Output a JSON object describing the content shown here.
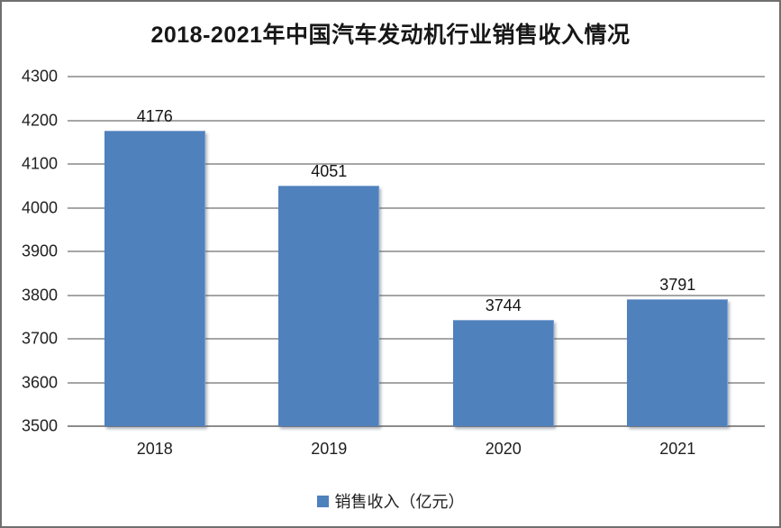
{
  "frame": {
    "background": "#ffffff",
    "border_color": "#6f6f6f"
  },
  "chart_data": {
    "type": "bar",
    "title": "2018-2021年中国汽车发动机行业销售收入情况",
    "categories": [
      "2018",
      "2019",
      "2020",
      "2021"
    ],
    "series": [
      {
        "name": "销售收入（亿元）",
        "values": [
          4176,
          4051,
          3744,
          3791
        ]
      }
    ],
    "xlabel": "",
    "ylabel": "",
    "ylim": [
      3500,
      4300
    ],
    "yticks": [
      4300,
      4200,
      4100,
      4000,
      3900,
      3800,
      3700,
      3600,
      3500
    ],
    "grid": true,
    "data_labels": true,
    "legend_position": "bottom",
    "bar_color": "#4F81BD",
    "gridline_color": "#A6A6A6",
    "baseline_color": "#8c8c8c",
    "text_color": "#1f1f1f"
  }
}
